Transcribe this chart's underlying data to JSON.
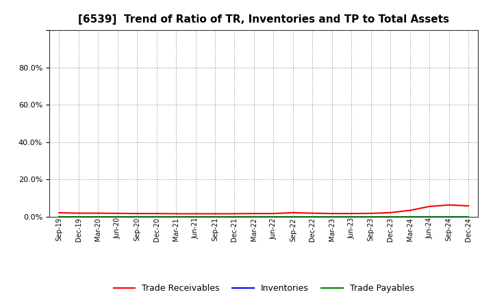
{
  "title": "[6539]  Trend of Ratio of TR, Inventories and TP to Total Assets",
  "x_labels": [
    "Sep-19",
    "Dec-19",
    "Mar-20",
    "Jun-20",
    "Sep-20",
    "Dec-20",
    "Mar-21",
    "Jun-21",
    "Sep-21",
    "Dec-21",
    "Mar-22",
    "Jun-22",
    "Sep-22",
    "Dec-22",
    "Mar-23",
    "Jun-23",
    "Sep-23",
    "Dec-23",
    "Mar-24",
    "Jun-24",
    "Sep-24",
    "Dec-24"
  ],
  "trade_receivables": [
    0.021,
    0.019,
    0.019,
    0.018,
    0.017,
    0.017,
    0.016,
    0.016,
    0.016,
    0.016,
    0.017,
    0.017,
    0.022,
    0.019,
    0.017,
    0.017,
    0.018,
    0.022,
    0.034,
    0.055,
    0.063,
    0.058
  ],
  "inventories": [
    0.0,
    0.0,
    0.0,
    0.0,
    0.0,
    0.0,
    0.0,
    0.0,
    0.0,
    0.0,
    0.0,
    0.0,
    0.0,
    0.0,
    0.0,
    0.0,
    0.0,
    0.0,
    0.0,
    0.0,
    0.0,
    0.0
  ],
  "trade_payables": [
    0.0,
    0.0,
    0.0,
    0.0,
    0.0,
    0.0,
    0.0,
    0.0,
    0.0,
    0.0,
    0.0,
    0.0,
    0.0,
    0.0,
    0.0,
    0.0,
    0.0,
    0.0,
    0.0,
    0.0,
    0.0,
    0.0
  ],
  "tr_color": "#FF0000",
  "inv_color": "#0000FF",
  "tp_color": "#008000",
  "ylim": [
    0.0,
    1.0
  ],
  "yticks": [
    0.0,
    0.2,
    0.4,
    0.6,
    0.8,
    1.0
  ],
  "bg_color": "#FFFFFF",
  "plot_bg_color": "#FFFFFF",
  "grid_color": "#888888",
  "title_fontsize": 11,
  "legend_labels": [
    "Trade Receivables",
    "Inventories",
    "Trade Payables"
  ]
}
